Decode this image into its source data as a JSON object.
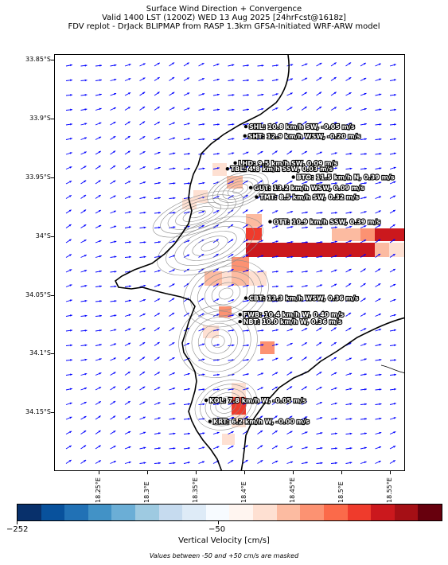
{
  "title": {
    "line1": "Surface Wind Direction + Convergence",
    "line2": "Valid 1400 LST (1200Z) WED 13 Aug 2025 [24hrFcst@1618z]",
    "line3": "FDV replot - DrJack BLIPMAP from RASP 1.3km GFSA-Initiated WRF-ARW model"
  },
  "map": {
    "lon_range": [
      18.204,
      18.566
    ],
    "lat_range": [
      -34.2,
      -33.845
    ],
    "lat_labels": [
      {
        "lat": -33.85,
        "text": "33.85°S"
      },
      {
        "lat": -33.9,
        "text": "33.9°S"
      },
      {
        "lat": -33.95,
        "text": "33.95°S"
      },
      {
        "lat": -34.0,
        "text": "34°S"
      },
      {
        "lat": -34.05,
        "text": "34.05°S"
      },
      {
        "lat": -34.1,
        "text": "34.1°S"
      },
      {
        "lat": -34.15,
        "text": "34.15°S"
      }
    ],
    "lon_labels": [
      {
        "lon": 18.25,
        "text": "18.25°E"
      },
      {
        "lon": 18.3,
        "text": "18.3°E"
      },
      {
        "lon": 18.35,
        "text": "18.35°E"
      },
      {
        "lon": 18.4,
        "text": "18.4°E"
      },
      {
        "lon": 18.45,
        "text": "18.45°E"
      },
      {
        "lon": 18.5,
        "text": "18.5°E"
      },
      {
        "lon": 18.55,
        "text": "18.55°E"
      }
    ],
    "stations": [
      {
        "name": "SHL",
        "text": "SHL: 10.8 km/h SW, -0.05 m/s",
        "lon": 18.401,
        "lat": -33.906
      },
      {
        "name": "SHT",
        "text": "SHT: 12.9 km/h WSW, -0.20 m/s",
        "lon": 18.4,
        "lat": -33.914
      },
      {
        "name": "LHD",
        "text": "LHD: 9.5 km/h SW, 0.09 m/s",
        "lon": 18.39,
        "lat": -33.937
      },
      {
        "name": "TBL",
        "text": "TBL: 4.8 km/h SSW, 0.03 m/s",
        "lon": 18.382,
        "lat": -33.942
      },
      {
        "name": "BTO",
        "text": "BTO: 11.5 km/h N, 0.39 m/s",
        "lon": 18.45,
        "lat": -33.949
      },
      {
        "name": "GUT",
        "text": "GUT: 13.2 km/h WSW, 0.09 m/s",
        "lon": 18.406,
        "lat": -33.958
      },
      {
        "name": "TMT",
        "text": "TMT: 8.5 km/h SW, 0.32 m/s",
        "lon": 18.412,
        "lat": -33.966
      },
      {
        "name": "OTT",
        "text": "OTT: 10.9 km/h SSW, 0.39 m/s",
        "lon": 18.426,
        "lat": -33.987
      },
      {
        "name": "CBT",
        "text": "CBT: 13.3 km/h WSW, 0.36 m/s",
        "lon": 18.401,
        "lat": -34.052
      },
      {
        "name": "FWB",
        "text": "FWB: 10.4 km/h W, 0.40 m/s",
        "lon": 18.395,
        "lat": -34.066
      },
      {
        "name": "NBT",
        "text": "NBT: 10.0 km/h W, 0.36 m/s",
        "lon": 18.395,
        "lat": -34.072
      },
      {
        "name": "KOL",
        "text": "KOL: 7.8 km/h W, -0.05 m/s",
        "lon": 18.36,
        "lat": -34.139
      },
      {
        "name": "KRT",
        "text": "KRT: 6.2 km/h W, -0.00 m/s",
        "lon": 18.364,
        "lat": -34.157
      }
    ]
  },
  "colorbar": {
    "min_label": "−252",
    "mid_label": "−50",
    "label": "Vertical Velocity [cm/s]",
    "note": "Values between -50 and +50 cm/s are masked",
    "colors": [
      "#08306b",
      "#08519c",
      "#2171b5",
      "#4292c6",
      "#6baed6",
      "#9ecae1",
      "#c6dbef",
      "#deebf7",
      "#f7fbff",
      "#fff5f0",
      "#fee0d2",
      "#fcbba1",
      "#fc9272",
      "#fb6a4a",
      "#ef3b2c",
      "#cb181d",
      "#a50f15",
      "#67000d"
    ]
  },
  "colors": {
    "vectors": "#0000ff",
    "coast": "#000000",
    "contours": "#8c8c8c"
  }
}
